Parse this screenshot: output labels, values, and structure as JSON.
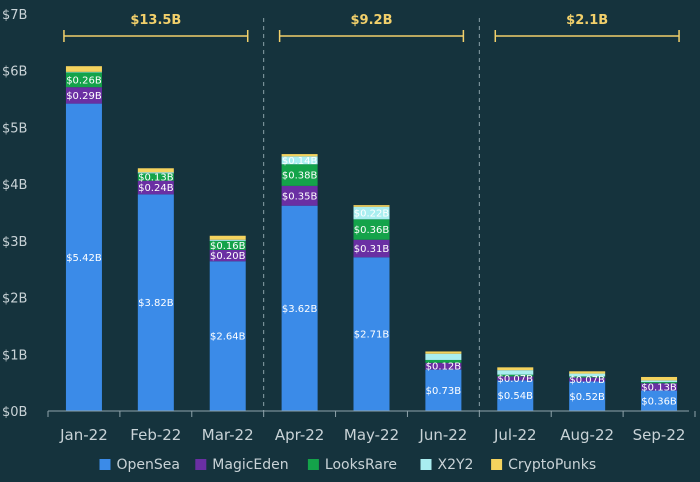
{
  "chart_data": {
    "type": "bar",
    "stacked": true,
    "categories": [
      "Jan-22",
      "Feb-22",
      "Mar-22",
      "Apr-22",
      "May-22",
      "Jun-22",
      "Jul-22",
      "Aug-22",
      "Sep-22"
    ],
    "ylim": [
      0,
      7
    ],
    "yticks": [
      0,
      1,
      2,
      3,
      4,
      5,
      6,
      7
    ],
    "ytick_labels": [
      "$0B",
      "$1B",
      "$2B",
      "$3B",
      "$4B",
      "$5B",
      "$6B",
      "$7B"
    ],
    "legend_position": "bottom",
    "grid": false,
    "series": [
      {
        "name": "OpenSea",
        "color": "#3b8be8",
        "values": [
          5.42,
          3.82,
          2.64,
          3.62,
          2.71,
          0.73,
          0.54,
          0.52,
          0.36
        ],
        "labels": [
          "$5.42B",
          "$3.82B",
          "$2.64B",
          "$3.62B",
          "$2.71B",
          "$0.73B",
          "$0.54B",
          "$0.52B",
          "$0.36B"
        ]
      },
      {
        "name": "MagicEden",
        "color": "#6a2fa3",
        "values": [
          0.29,
          0.24,
          0.2,
          0.35,
          0.31,
          0.12,
          0.07,
          0.07,
          0.13
        ],
        "labels": [
          "$0.29B",
          "$0.24B",
          "$0.20B",
          "$0.35B",
          "$0.31B",
          "$0.12B",
          "$0.07B",
          "$0.07B",
          "$0.13B"
        ]
      },
      {
        "name": "LooksRare",
        "color": "#14a34a",
        "values": [
          0.26,
          0.13,
          0.16,
          0.38,
          0.36,
          0.05,
          0.03,
          0.02,
          0.02
        ],
        "labels": [
          "$0.26B",
          "$0.13B",
          "$0.16B",
          "$0.38B",
          "$0.36B",
          "",
          "",
          "",
          ""
        ]
      },
      {
        "name": "X2Y2",
        "color": "#a9eef0",
        "values": [
          0.01,
          0.02,
          0.02,
          0.14,
          0.22,
          0.11,
          0.08,
          0.05,
          0.03
        ],
        "labels": [
          "",
          "",
          "",
          "$0.14B",
          "$0.22B",
          "",
          "",
          "",
          ""
        ]
      },
      {
        "name": "CryptoPunks",
        "color": "#f4d35e",
        "values": [
          0.1,
          0.07,
          0.07,
          0.04,
          0.03,
          0.04,
          0.05,
          0.04,
          0.06
        ],
        "labels": [
          "",
          "",
          "",
          "",
          "",
          "",
          "",
          "",
          ""
        ]
      }
    ],
    "quarter_totals": [
      {
        "label": "$13.5B",
        "from": 0,
        "to": 2
      },
      {
        "label": "$9.2B",
        "from": 3,
        "to": 5
      },
      {
        "label": "$2.1B",
        "from": 6,
        "to": 8
      }
    ]
  }
}
